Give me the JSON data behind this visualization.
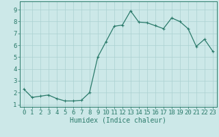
{
  "x_values": [
    0,
    1,
    2,
    3,
    4,
    5,
    6,
    7,
    8,
    9,
    10,
    11,
    12,
    13,
    14,
    15,
    16,
    17,
    18,
    19,
    20,
    21,
    22,
    23
  ],
  "y_values": [
    2.3,
    1.6,
    1.7,
    1.8,
    1.5,
    1.3,
    1.3,
    1.35,
    2.0,
    5.0,
    6.3,
    7.6,
    7.7,
    8.9,
    7.95,
    7.9,
    7.65,
    7.4,
    8.3,
    8.0,
    7.4,
    5.9,
    6.5,
    5.5
  ],
  "line_color": "#2a7a6a",
  "marker": "+",
  "marker_size": 3,
  "marker_lw": 0.8,
  "bg_color": "#cce8e8",
  "grid_color": "#aad0d0",
  "axis_color": "#2a7a6a",
  "xlabel": "Humidex (Indice chaleur)",
  "xlabel_fontsize": 7,
  "tick_fontsize": 6.5,
  "xlim": [
    -0.5,
    23.5
  ],
  "ylim": [
    0.8,
    9.7
  ],
  "yticks": [
    1,
    2,
    3,
    4,
    5,
    6,
    7,
    8,
    9
  ],
  "xticks": [
    0,
    1,
    2,
    3,
    4,
    5,
    6,
    7,
    8,
    9,
    10,
    11,
    12,
    13,
    14,
    15,
    16,
    17,
    18,
    19,
    20,
    21,
    22,
    23
  ],
  "line_width": 0.9
}
